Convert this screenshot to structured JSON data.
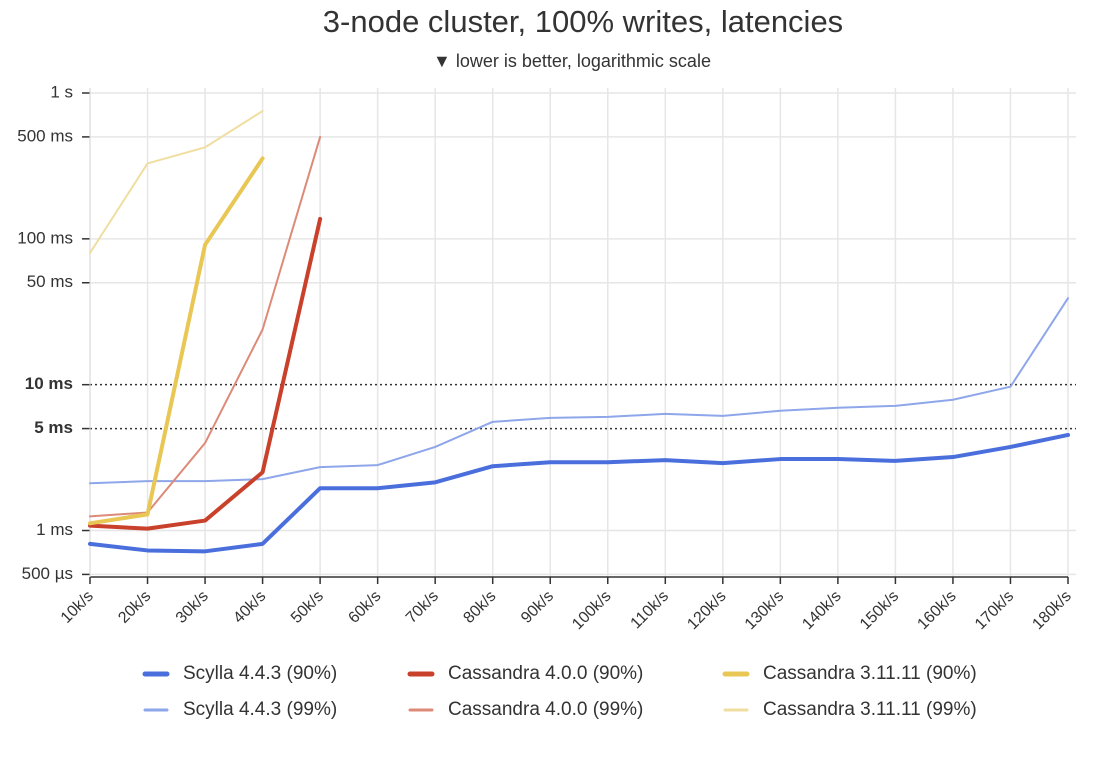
{
  "chart_data": {
    "type": "line",
    "title": "3-node cluster, 100% writes, latencies",
    "subtitle": "▼ lower is better, logarithmic scale",
    "y_scale": "log",
    "grid": true,
    "categories": [
      "10k/s",
      "20k/s",
      "30k/s",
      "40k/s",
      "50k/s",
      "60k/s",
      "70k/s",
      "80k/s",
      "90k/s",
      "100k/s",
      "110k/s",
      "120k/s",
      "130k/s",
      "140k/s",
      "150k/s",
      "160k/s",
      "170k/s",
      "180k/s"
    ],
    "ylim": [
      0.48,
      1000
    ],
    "yticks": [
      {
        "value": 0.5,
        "label": "500 µs"
      },
      {
        "value": 1,
        "label": "1 ms"
      },
      {
        "value": 5,
        "label": "5 ms",
        "emphasis": true
      },
      {
        "value": 10,
        "label": "10 ms",
        "emphasis": true
      },
      {
        "value": 50,
        "label": "50 ms"
      },
      {
        "value": 100,
        "label": "100 ms"
      },
      {
        "value": 500,
        "label": "500 ms"
      },
      {
        "value": 1000,
        "label": "1 s"
      }
    ],
    "series": [
      {
        "name": "Scylla 4.4.3 (90%)",
        "color": "#4a6fdc",
        "width": 4,
        "values": [
          0.81,
          0.73,
          0.72,
          0.81,
          1.95,
          1.95,
          2.14,
          2.76,
          2.94,
          2.94,
          3.04,
          2.9,
          3.09,
          3.09,
          3.0,
          3.19,
          3.74,
          4.52
        ]
      },
      {
        "name": "Cassandra 4.0.0 (90%)",
        "color": "#c9402b",
        "width": 4,
        "values": [
          1.08,
          1.03,
          1.17,
          2.51,
          137,
          null,
          null,
          null,
          null,
          null,
          null,
          null,
          null,
          null,
          null,
          null,
          null,
          null
        ]
      },
      {
        "name": "Cassandra 3.11.11 (90%)",
        "color": "#e8c755",
        "width": 4,
        "values": [
          1.12,
          1.29,
          91,
          356,
          null,
          null,
          null,
          null,
          null,
          null,
          null,
          null,
          null,
          null,
          null,
          null,
          null,
          null
        ]
      },
      {
        "name": "Scylla 4.4.3 (99%)",
        "color": "#8ea6ea",
        "width": 2,
        "values": [
          2.11,
          2.18,
          2.18,
          2.25,
          2.72,
          2.81,
          3.74,
          5.56,
          5.92,
          6.01,
          6.31,
          6.11,
          6.62,
          6.94,
          7.16,
          7.88,
          9.69,
          39.2
        ]
      },
      {
        "name": "Cassandra 4.0.0 (99%)",
        "color": "#dd8a78",
        "width": 2,
        "values": [
          1.25,
          1.33,
          3.98,
          23.9,
          500,
          null,
          null,
          null,
          null,
          null,
          null,
          null,
          null,
          null,
          null,
          null,
          null,
          null
        ]
      },
      {
        "name": "Cassandra 3.11.11 (99%)",
        "color": "#f0dea0",
        "width": 2,
        "values": [
          80,
          329,
          424,
          752,
          null,
          null,
          null,
          null,
          null,
          null,
          null,
          null,
          null,
          null,
          null,
          null,
          null,
          null
        ]
      }
    ]
  }
}
